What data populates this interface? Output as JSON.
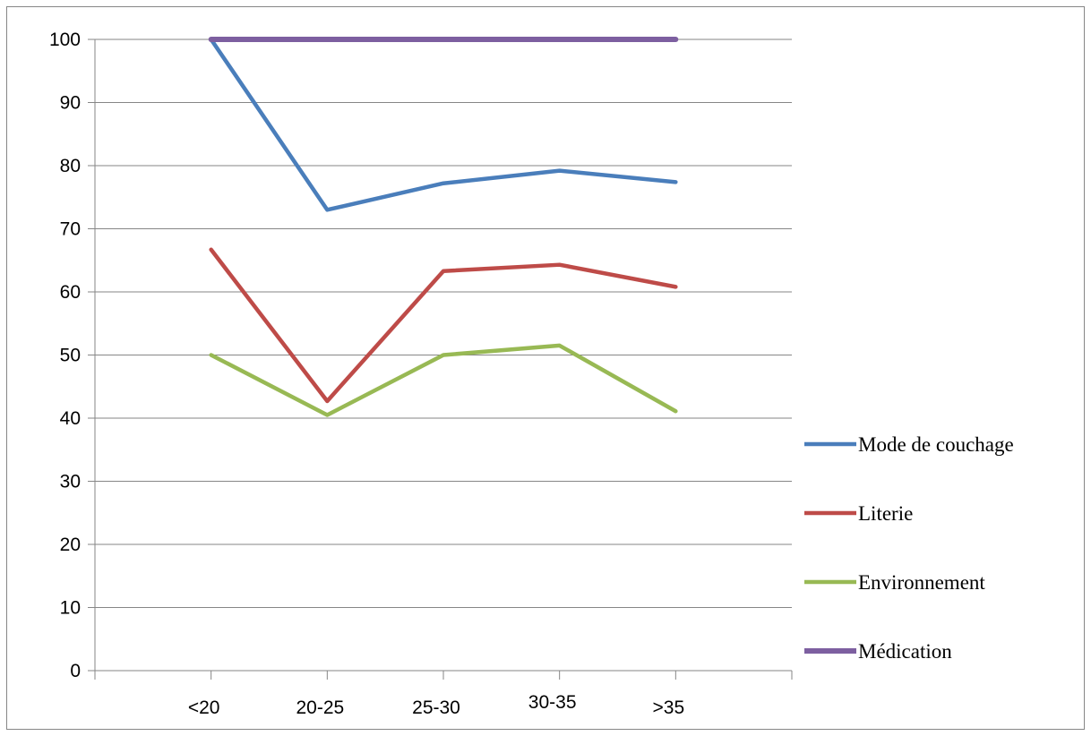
{
  "chart_data": {
    "type": "line",
    "title": "",
    "xlabel": "",
    "ylabel": "",
    "categories": [
      "<20",
      "20-25",
      "25-30",
      "30-35",
      ">35"
    ],
    "ylim": [
      0,
      100
    ],
    "yticks": [
      0,
      10,
      20,
      30,
      40,
      50,
      60,
      70,
      80,
      90,
      100
    ],
    "grid": "horizontal",
    "legend_position": "right",
    "series": [
      {
        "name": "Mode de couchage",
        "color": "#4a7ebb",
        "values": [
          100,
          73,
          77.2,
          79.2,
          77.4
        ]
      },
      {
        "name": "Literie",
        "color": "#be4b48",
        "values": [
          66.7,
          42.7,
          63.3,
          64.3,
          60.8
        ]
      },
      {
        "name": "Environnement",
        "color": "#98b954",
        "values": [
          50,
          40.5,
          50,
          51.5,
          41.1
        ]
      },
      {
        "name": "Médication",
        "color": "#7d5fa0",
        "values": [
          100,
          100,
          100,
          100,
          100
        ]
      }
    ]
  }
}
